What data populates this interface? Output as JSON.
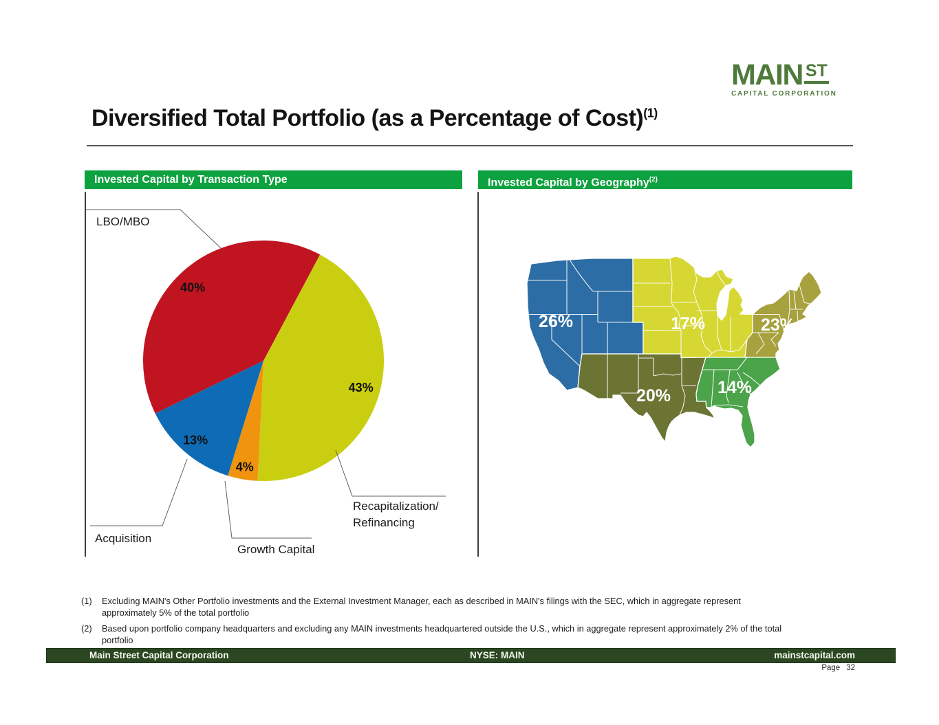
{
  "colors": {
    "header_green": "#0ea13f",
    "footer_green": "#2b4722",
    "logo_green": "#4e7b3c"
  },
  "logo": {
    "main": "MAIN",
    "st": "ST",
    "subtitle": "CAPITAL CORPORATION"
  },
  "title": {
    "text": "Diversified Total Portfolio (as a Percentage of Cost)",
    "footnote_ref": "(1)"
  },
  "panels": {
    "left_header": "Invested Capital by Transaction Type",
    "right_header": "Invested Capital by Geography",
    "right_header_footnote_ref": "(2)"
  },
  "chart_data": [
    {
      "type": "pie",
      "title": "Invested Capital by Transaction Type",
      "start_angle_deg": 28,
      "slices": [
        {
          "label": "LBO/MBO",
          "value": 40,
          "value_label": "40%",
          "color": "#c01421"
        },
        {
          "label": "Recapitalization/Refinancing",
          "label_line1": "Recapitalization/",
          "label_line2": "Refinancing",
          "value": 43,
          "value_label": "43%",
          "color": "#c9cf10"
        },
        {
          "label": "Acquisition",
          "value": 13,
          "value_label": "13%",
          "color": "#0d6cb5"
        },
        {
          "label": "Growth Capital",
          "value": 4,
          "value_label": "4%",
          "color": "#f0930e"
        }
      ]
    },
    {
      "type": "choropleth-map",
      "title": "Invested Capital by Geography",
      "area": "United States",
      "regions": [
        {
          "name": "West",
          "value": 26,
          "value_label": "26%",
          "color": "#2d6da5"
        },
        {
          "name": "Midwest",
          "value": 17,
          "value_label": "17%",
          "color": "#d6d733"
        },
        {
          "name": "Northeast",
          "value": 23,
          "value_label": "23%",
          "color": "#a7a13e"
        },
        {
          "name": "Southwest",
          "value": 20,
          "value_label": "20%",
          "color": "#6c7434"
        },
        {
          "name": "Southeast",
          "value": 14,
          "value_label": "14%",
          "color": "#4ba34a"
        }
      ]
    }
  ],
  "footnotes": [
    {
      "marker": "(1)",
      "lines": [
        "Excluding MAIN's Other Portfolio investments and the External Investment Manager, each as described in MAIN's filings with the SEC, which in aggregate represent",
        "approximately 5% of the total portfolio"
      ]
    },
    {
      "marker": "(2)",
      "lines": [
        "Based upon portfolio company headquarters and excluding any MAIN investments headquartered outside the U.S., which in aggregate represent approximately 2%  of the total",
        "portfolio"
      ]
    }
  ],
  "footer": {
    "left": "Main Street Capital Corporation",
    "center": "NYSE: MAIN",
    "right": "mainstcapital.com"
  },
  "page": {
    "label": "Page",
    "number": "32"
  }
}
